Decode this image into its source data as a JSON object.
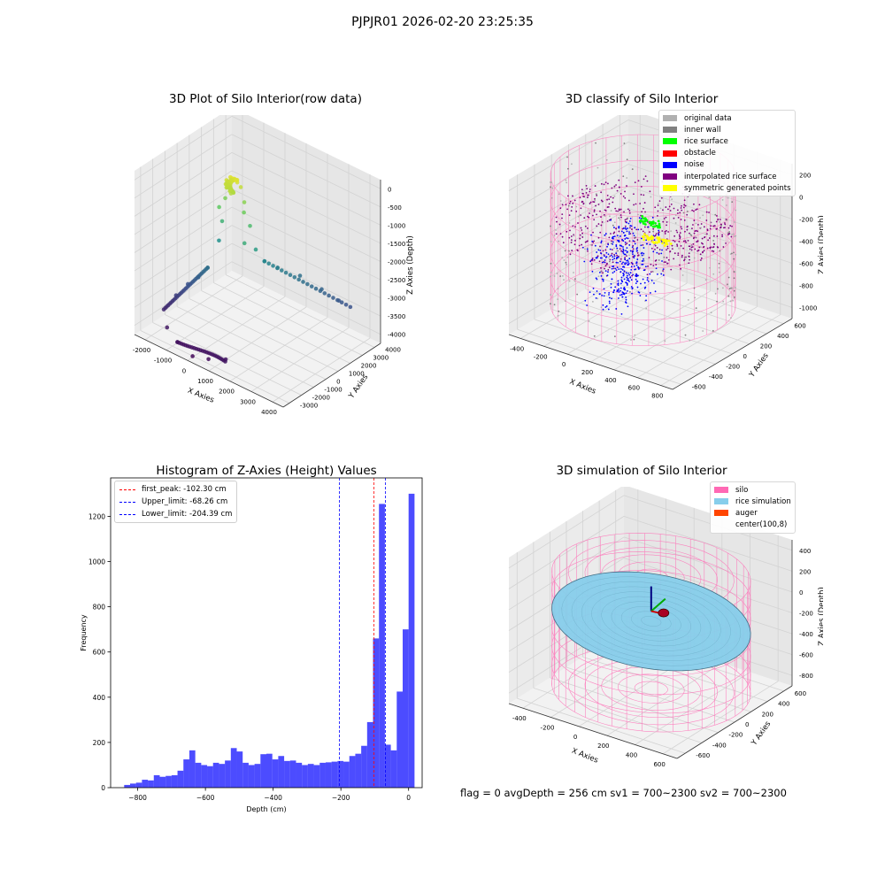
{
  "figure": {
    "suptitle": "PJPJR01 2026-02-20 23:25:35",
    "footer": "flag = 0     avgDepth = 256 cm  sv1 = 700~2300  sv2 = 700~2300"
  },
  "chart_data": [
    {
      "type": "scatter",
      "subtype": "3d",
      "title": "3D Plot of Silo Interior(row data)",
      "xlabel": "X Axies",
      "ylabel": "Y Axies",
      "zlabel": "Z Axies (Depth)",
      "x_ticks": [
        "-2000",
        "-1000",
        "0",
        "1000",
        "2000",
        "3000",
        "4000"
      ],
      "y_ticks": [
        "-3000",
        "-2000",
        "-1000",
        "0",
        "1000",
        "2000",
        "3000",
        "4000"
      ],
      "z_ticks": [
        "0",
        "-500",
        "-1000",
        "-1500",
        "-2000",
        "-2500",
        "-3000",
        "-3500",
        "-4000"
      ],
      "xlim": [
        -2500,
        4200
      ],
      "ylim": [
        -3200,
        4300
      ],
      "zlim": [
        -4200,
        200
      ],
      "colormap": "viridis (by depth)",
      "points": [
        [
          0,
          0,
          0
        ],
        [
          100,
          50,
          0
        ],
        [
          -100,
          80,
          -20
        ],
        [
          50,
          -100,
          -50
        ],
        [
          200,
          100,
          -80
        ],
        [
          -200,
          -50,
          -100
        ],
        [
          300,
          200,
          -200
        ],
        [
          -300,
          150,
          -250
        ],
        [
          150,
          -300,
          -300
        ],
        [
          400,
          300,
          -600
        ],
        [
          -400,
          200,
          -700
        ],
        [
          500,
          100,
          -800
        ],
        [
          -500,
          -100,
          -900
        ],
        [
          600,
          400,
          -1200
        ],
        [
          -600,
          300,
          -1400
        ],
        [
          700,
          -200,
          -1500
        ],
        [
          800,
          500,
          -1800
        ],
        [
          -800,
          400,
          -2000
        ],
        [
          900,
          1000,
          -2200
        ],
        [
          1200,
          1500,
          -2400
        ],
        [
          1800,
          2200,
          -2600
        ],
        [
          2600,
          2500,
          -2800
        ],
        [
          3200,
          2800,
          -3000
        ],
        [
          3600,
          3000,
          -3100
        ],
        [
          -900,
          -300,
          -2600
        ],
        [
          -1200,
          -500,
          -2900
        ],
        [
          -1500,
          -800,
          -3100
        ],
        [
          -1800,
          -1200,
          -3400
        ],
        [
          -2000,
          -1800,
          -3700
        ],
        [
          -1500,
          -2400,
          -3900
        ],
        [
          -800,
          -2800,
          -4000
        ],
        [
          0,
          -3000,
          -4100
        ],
        [
          600,
          -2800,
          -4050
        ],
        [
          1200,
          -2500,
          -3950
        ]
      ]
    },
    {
      "type": "scatter",
      "subtype": "3d",
      "title": "3D classify of Silo Interior",
      "xlabel": "X Axies",
      "ylabel": "Y Axies",
      "zlabel": "Z Axies (Depth)",
      "x_ticks": [
        "-400",
        "-200",
        "0",
        "200",
        "400",
        "600",
        "800"
      ],
      "y_ticks": [
        "-600",
        "-400",
        "-200",
        "0",
        "200",
        "400",
        "600"
      ],
      "z_ticks": [
        "200",
        "0",
        "-200",
        "-400",
        "-600",
        "-800",
        "-1000"
      ],
      "xlim": [
        -500,
        820
      ],
      "ylim": [
        -650,
        650
      ],
      "zlim": [
        -1000,
        200
      ],
      "legend": [
        {
          "label": "original data",
          "color": "#b0b0b0"
        },
        {
          "label": "inner wall",
          "color": "#808080"
        },
        {
          "label": "rice surface",
          "color": "#00ff00"
        },
        {
          "label": "obstacle",
          "color": "#ff0000"
        },
        {
          "label": "noise",
          "color": "#0000ff"
        },
        {
          "label": "interpolated rice surface",
          "color": "#800080"
        },
        {
          "label": "symmetric generated points",
          "color": "#ffff00"
        }
      ],
      "wireframe_color": "#ff69b4",
      "silo": {
        "radius": 600,
        "top": 150,
        "bottom": -850
      }
    },
    {
      "type": "bar",
      "subtype": "histogram",
      "title": "Histogram of Z-Axies (Height) Values",
      "xlabel": "Depth (cm)",
      "ylabel": "Frequency",
      "x_ticks": [
        -800,
        -600,
        -400,
        -200,
        0
      ],
      "y_ticks": [
        0,
        200,
        400,
        600,
        800,
        1000,
        1200
      ],
      "xlim": [
        -880,
        40
      ],
      "ylim": [
        0,
        1370
      ],
      "bar_color": "#0000ff",
      "bin_width": 17.5,
      "bins_start": -840,
      "values": [
        12,
        18,
        22,
        35,
        32,
        55,
        48,
        52,
        55,
        75,
        125,
        165,
        110,
        100,
        95,
        110,
        105,
        120,
        175,
        160,
        110,
        100,
        105,
        148,
        150,
        125,
        140,
        118,
        120,
        110,
        100,
        105,
        100,
        110,
        112,
        115,
        118,
        115,
        140,
        150,
        185,
        290,
        660,
        1255,
        190,
        165,
        425,
        700,
        1300
      ],
      "lines": [
        {
          "label": "first_peak: -102.30 cm",
          "x": -102.3,
          "color": "#ff0000"
        },
        {
          "label": "Upper_limit: -68.26 cm",
          "x": -68.26,
          "color": "#0000ff"
        },
        {
          "label": "Lower_limit: -204.39 cm",
          "x": -204.39,
          "color": "#0000ff"
        }
      ]
    },
    {
      "type": "area",
      "subtype": "3d surface",
      "title": "3D simulation of Silo Interior",
      "xlabel": "X Axies",
      "ylabel": "Y Axies",
      "zlabel": "Z Axies (Depth)",
      "x_ticks": [
        "-400",
        "-200",
        "0",
        "200",
        "400",
        "600"
      ],
      "y_ticks": [
        "-600",
        "-400",
        "-200",
        "0",
        "200",
        "400",
        "600"
      ],
      "z_ticks": [
        "400",
        "200",
        "0",
        "-200",
        "-400",
        "-600",
        "-800"
      ],
      "xlim": [
        -500,
        700
      ],
      "ylim": [
        -650,
        650
      ],
      "zlim": [
        -900,
        400
      ],
      "legend": [
        {
          "label": "silo",
          "color": "#ff69b4"
        },
        {
          "label": "rice simulation",
          "color": "#87ceeb"
        },
        {
          "label": "auger",
          "color": "#ff4500"
        },
        {
          "label": "center(100,8)",
          "color": ""
        }
      ],
      "silo": {
        "radius": 600,
        "top": 150,
        "bottom": -850
      },
      "center": [
        100,
        8
      ]
    }
  ]
}
